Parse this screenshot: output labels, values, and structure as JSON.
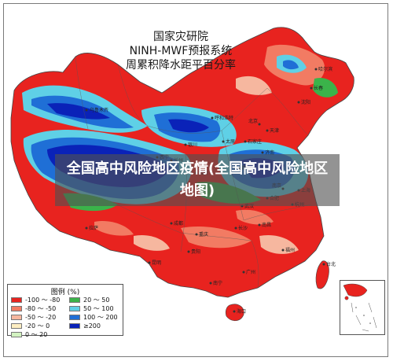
{
  "title": {
    "line1": "国家灾研院",
    "line2": "NINH-MWF预报系统",
    "line3": "周累积降水距平百分率"
  },
  "overlay_text": "全国高中风险地区疫情(全国高中风险地区地图)",
  "legend": {
    "title": "图例 (%)",
    "items": [
      {
        "label": "-100 ～ -80",
        "color": "#e8231f"
      },
      {
        "label": "-80 ～ -50",
        "color": "#f27b63"
      },
      {
        "label": "-50 ～ -20",
        "color": "#f6b79f"
      },
      {
        "label": "-20 ～ 0",
        "color": "#fdeec2"
      },
      {
        "label": "0 ～ 20",
        "color": "#d2f2c0"
      },
      {
        "label": "20 ～ 50",
        "color": "#3bb34a"
      },
      {
        "label": "50 ～ 100",
        "color": "#5fd0e6"
      },
      {
        "label": "100 ～ 200",
        "color": "#1f6fd6"
      },
      {
        "label": "≥200",
        "color": "#0a22b8"
      }
    ]
  },
  "colors": {
    "dry": "#e8231f",
    "moderate_dry": "#f27b63",
    "wet": "#1f6fd6",
    "very_wet": "#0a22b8",
    "cyan": "#5fd0e6",
    "green": "#3bb34a"
  },
  "city_labels": [
    "乌鲁木齐",
    "哈尔滨",
    "长春",
    "沈阳",
    "北京",
    "天津",
    "西宁",
    "拉萨",
    "成都",
    "重庆",
    "贵阳",
    "昆明",
    "南宁",
    "广州",
    "海口",
    "福州",
    "台北",
    "上海",
    "南京",
    "杭州",
    "合肥",
    "武汉",
    "长沙",
    "南昌",
    "郑州",
    "济南",
    "石家庄",
    "太原",
    "西安",
    "兰州",
    "银川",
    "呼和浩特"
  ]
}
